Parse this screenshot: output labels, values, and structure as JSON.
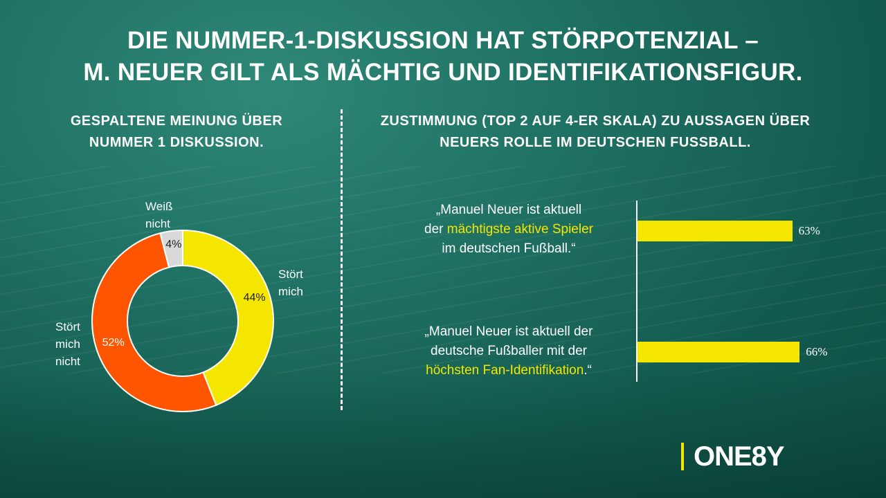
{
  "title": {
    "line1": "DIE NUMMER-1-DISKUSSION HAT STÖRPOTENZIAL –",
    "line2": "M. NEUER GILT ALS MÄCHTIG UND IDENTIFIKATIONSFIGUR."
  },
  "left": {
    "subtitle_line1": "GESPALTENE MEINUNG ÜBER",
    "subtitle_line2": "NUMMER 1 DISKUSSION."
  },
  "right": {
    "subtitle_line1": "ZUSTIMMUNG (TOP 2 AUF 4-ER SKALA)  ZU AUSSAGEN ÜBER",
    "subtitle_line2": "NEUERS ROLLE IM DEUTSCHEN FUSSBALL."
  },
  "colors": {
    "yellow": "#F5E600",
    "orange": "#FF5400",
    "grey": "#D9D9D9",
    "background": "#1F7163"
  },
  "logo": {
    "text": "ONE8Y"
  },
  "chart_data": [
    {
      "type": "pie",
      "variant": "donut",
      "series": [
        {
          "label_lines": [
            "Stört",
            "mich"
          ],
          "value": 44,
          "display": "44%",
          "color": "#F5E600"
        },
        {
          "label_lines": [
            "Stört",
            "mich",
            "nicht"
          ],
          "value": 52,
          "display": "52%",
          "color": "#FF5400"
        },
        {
          "label_lines": [
            "Weiß",
            "nicht"
          ],
          "value": 4,
          "display": "4%",
          "color": "#D9D9D9"
        }
      ]
    },
    {
      "type": "bar",
      "orientation": "horizontal",
      "xlim": [
        0,
        100
      ],
      "categories": [
        {
          "segments": [
            {
              "text": "„Manuel Neuer ist aktuell",
              "highlight": false
            },
            {
              "text": "der ",
              "highlight": false
            },
            {
              "text": "mächtigste aktive Spieler",
              "highlight": true
            },
            {
              "text": "im deutschen Fußball.“",
              "highlight": false
            }
          ],
          "lines": [
            [
              0
            ],
            [
              1,
              2
            ],
            [
              3
            ]
          ]
        },
        {
          "segments": [
            {
              "text": "„Manuel Neuer ist aktuell der",
              "highlight": false
            },
            {
              "text": "deutsche Fußballer mit der",
              "highlight": false
            },
            {
              "text": "höchsten Fan-Identifikation",
              "highlight": true
            },
            {
              "text": ".“",
              "highlight": false
            }
          ],
          "lines": [
            [
              0
            ],
            [
              1
            ],
            [
              2,
              3
            ]
          ]
        }
      ],
      "values": [
        63,
        66
      ],
      "value_labels": [
        "63%",
        "66%"
      ],
      "bar_color": "#F5E600"
    }
  ]
}
